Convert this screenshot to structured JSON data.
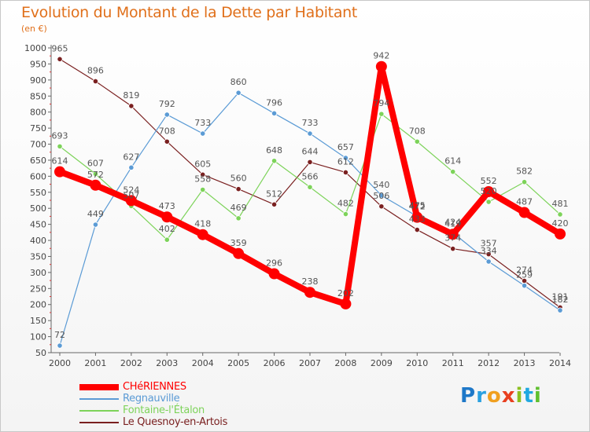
{
  "chart_data": {
    "type": "line",
    "title": "Evolution du Montant de la Dette par Habitant",
    "subtitle": "(en €)",
    "x": [
      "2000",
      "2001",
      "2002",
      "2003",
      "2004",
      "2005",
      "2006",
      "2007",
      "2008",
      "2009",
      "2010",
      "2011",
      "2012",
      "2013",
      "2014"
    ],
    "ylim": [
      50,
      1000
    ],
    "yticks": [
      50,
      100,
      150,
      200,
      250,
      300,
      350,
      400,
      450,
      500,
      550,
      600,
      650,
      700,
      750,
      800,
      850,
      900,
      950,
      1000
    ],
    "grid": false,
    "legend_placement": "bottom-left",
    "series": [
      {
        "name": "CHéRIENNES",
        "color": "#ff0000",
        "values": [
          614,
          572,
          524,
          473,
          418,
          359,
          296,
          238,
          202,
          942,
          472,
          419,
          552,
          487,
          420
        ]
      },
      {
        "name": "Regnauville",
        "color": "#5b9bd5",
        "values": [
          72,
          449,
          627,
          792,
          733,
          860,
          796,
          733,
          657,
          540,
          475,
          424,
          334,
          259,
          182
        ]
      },
      {
        "name": "Fontaine-l'Étalon",
        "color": "#7dd35a",
        "values": [
          693,
          607,
          507,
          402,
          558,
          469,
          648,
          566,
          482,
          794,
          708,
          614,
          520,
          582,
          481
        ]
      },
      {
        "name": "Le Quesnoy-en-Artois",
        "color": "#7a2020",
        "values": [
          965,
          896,
          819,
          708,
          605,
          560,
          512,
          644,
          612,
          506,
          433,
          374,
          357,
          274,
          191
        ]
      }
    ]
  },
  "logo": {
    "text": "Proxiti"
  }
}
